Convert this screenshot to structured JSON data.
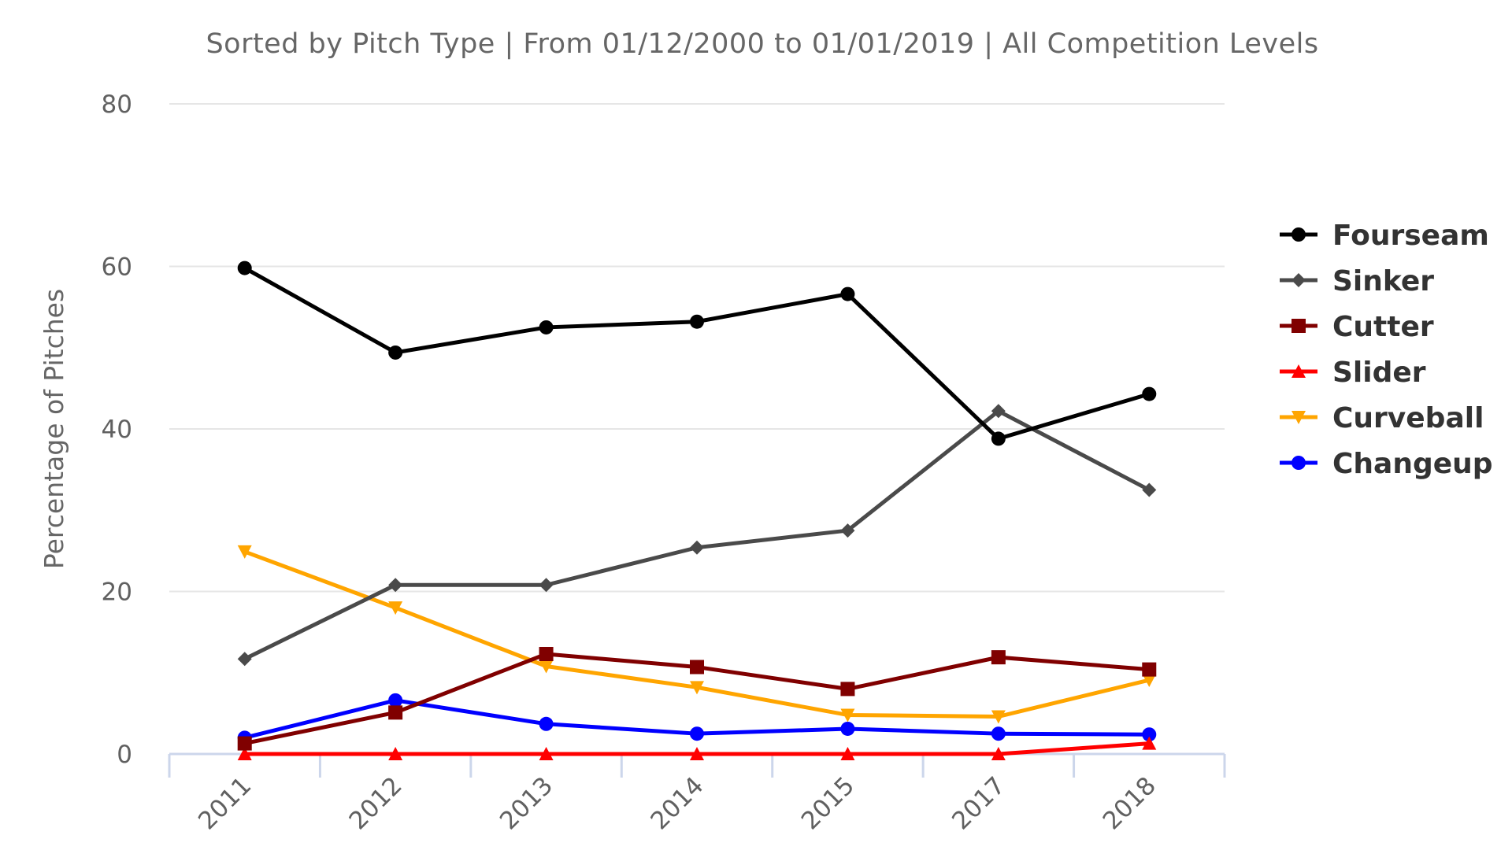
{
  "chart_data": {
    "type": "line",
    "title": "",
    "subtitle": "Sorted by Pitch Type | From 01/12/2000 to 01/01/2019 | All Competition Levels",
    "xlabel": "",
    "ylabel": "Percentage of Pitches",
    "ylim": [
      0,
      80
    ],
    "yticks": [
      "0",
      "20",
      "40",
      "60",
      "80"
    ],
    "categories": [
      "2011",
      "2012",
      "2013",
      "2014",
      "2015",
      "2017",
      "2018"
    ],
    "grid": true,
    "legend_position": "right",
    "series": [
      {
        "name": "Fourseam",
        "color": "#000000",
        "marker": "circle",
        "values": [
          59.8,
          49.4,
          52.5,
          53.2,
          56.6,
          38.8,
          44.3
        ]
      },
      {
        "name": "Sinker",
        "color": "#4a4a4a",
        "marker": "diamond",
        "values": [
          11.7,
          20.8,
          20.8,
          25.4,
          27.5,
          42.2,
          32.5
        ]
      },
      {
        "name": "Cutter",
        "color": "#800000",
        "marker": "square",
        "values": [
          1.3,
          5.1,
          12.3,
          10.7,
          8.0,
          11.9,
          10.4
        ]
      },
      {
        "name": "Slider",
        "color": "#ff0000",
        "marker": "triangle",
        "values": [
          0.0,
          0.0,
          0.0,
          0.0,
          0.0,
          0.0,
          1.3
        ]
      },
      {
        "name": "Curveball",
        "color": "#ffa500",
        "marker": "triangle-down",
        "values": [
          24.9,
          18.0,
          10.8,
          8.2,
          4.8,
          4.6,
          9.1
        ]
      },
      {
        "name": "Changeup",
        "color": "#0000ff",
        "marker": "circle",
        "values": [
          2.0,
          6.6,
          3.7,
          2.5,
          3.1,
          2.5,
          2.4
        ]
      }
    ]
  }
}
